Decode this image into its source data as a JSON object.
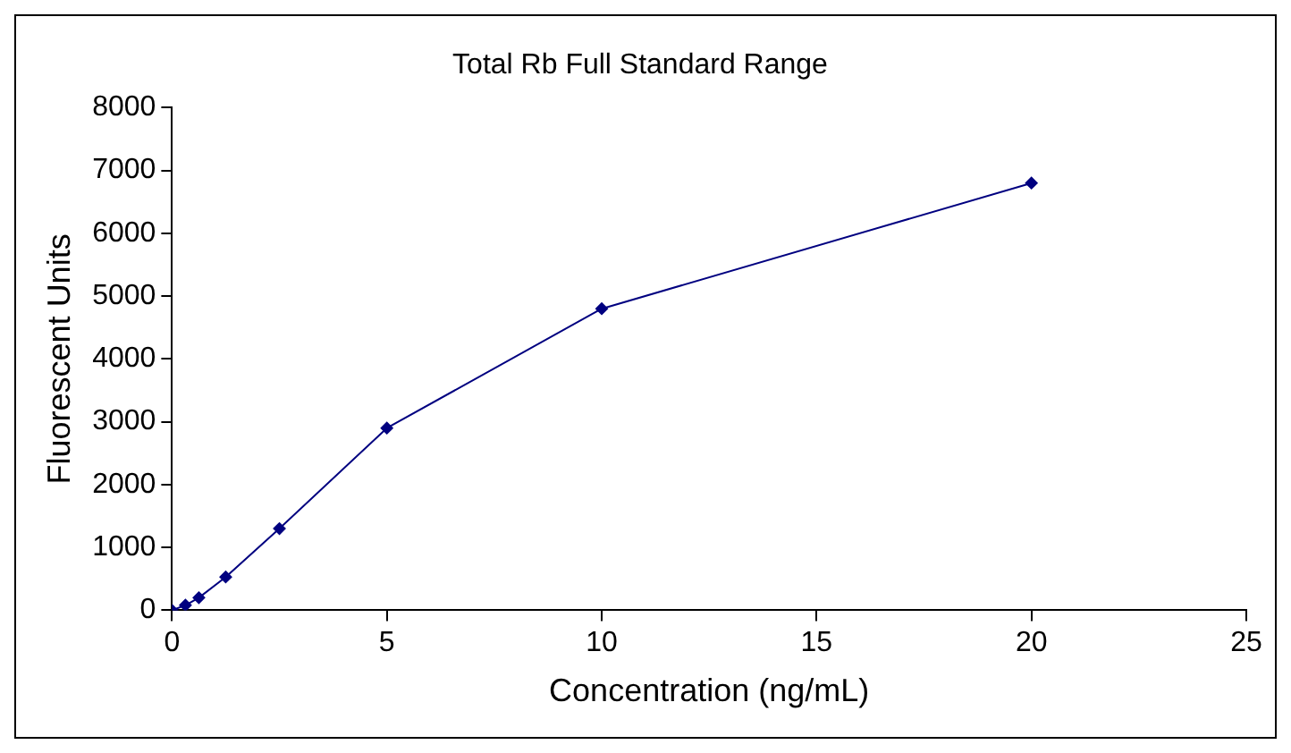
{
  "chart_data": {
    "type": "line",
    "title": "Total Rb Full Standard Range",
    "xlabel": "Concentration (ng/mL)",
    "ylabel": "Fluorescent Units",
    "x": [
      0,
      0.3125,
      0.625,
      1.25,
      2.5,
      5,
      10,
      20
    ],
    "series": [
      {
        "color": "#000080",
        "values": [
          0,
          80,
          200,
          530,
          1300,
          2900,
          4800,
          6800
        ]
      }
    ],
    "xlim": [
      0,
      25
    ],
    "xticks": [
      0,
      5,
      10,
      15,
      20,
      25
    ],
    "ylim": [
      0,
      8000
    ],
    "yticks": [
      0,
      1000,
      2000,
      3000,
      4000,
      5000,
      6000,
      7000,
      8000
    ],
    "grid": false,
    "legend": false,
    "marker": "diamond",
    "line_style": "solid"
  }
}
